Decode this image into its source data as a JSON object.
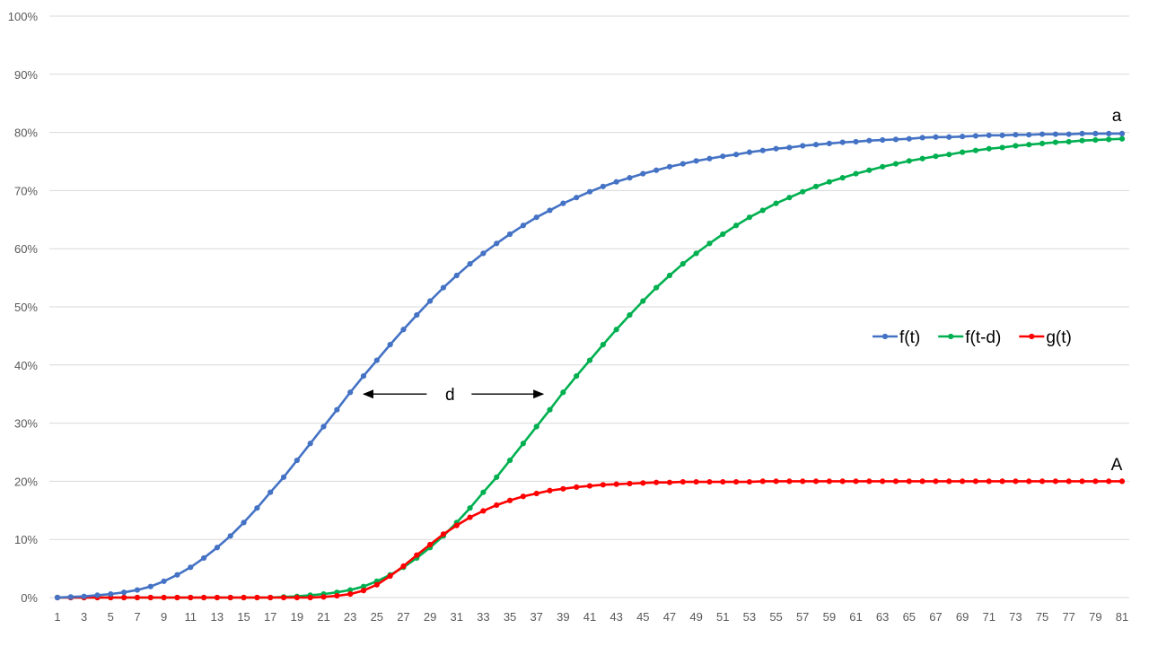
{
  "chart_data": {
    "type": "line",
    "x": [
      1,
      2,
      3,
      4,
      5,
      6,
      7,
      8,
      9,
      10,
      11,
      12,
      13,
      14,
      15,
      16,
      17,
      18,
      19,
      20,
      21,
      22,
      23,
      24,
      25,
      26,
      27,
      28,
      29,
      30,
      31,
      32,
      33,
      34,
      35,
      36,
      37,
      38,
      39,
      40,
      41,
      42,
      43,
      44,
      45,
      46,
      47,
      48,
      49,
      50,
      51,
      52,
      53,
      54,
      55,
      56,
      57,
      58,
      59,
      60,
      61,
      62,
      63,
      64,
      65,
      66,
      67,
      68,
      69,
      70,
      71,
      72,
      73,
      74,
      75,
      76,
      77,
      78,
      79,
      80,
      81
    ],
    "x_tick_labels": [
      "1",
      "3",
      "5",
      "7",
      "9",
      "11",
      "13",
      "15",
      "17",
      "19",
      "21",
      "23",
      "25",
      "27",
      "29",
      "31",
      "33",
      "35",
      "37",
      "39",
      "41",
      "43",
      "45",
      "47",
      "49",
      "51",
      "53",
      "55",
      "57",
      "59",
      "61",
      "63",
      "65",
      "67",
      "69",
      "71",
      "73",
      "75",
      "77",
      "79",
      "81"
    ],
    "y_tick_labels": [
      "0%",
      "10%",
      "20%",
      "30%",
      "40%",
      "50%",
      "60%",
      "70%",
      "80%",
      "90%",
      "100%"
    ],
    "ylim": [
      0,
      1
    ],
    "grid": "horizontal",
    "legend_position": "right-middle",
    "series": [
      {
        "name": "f(t)",
        "color": "#4472C4",
        "values": [
          0.0,
          0.001,
          0.002,
          0.004,
          0.006,
          0.009,
          0.013,
          0.019,
          0.028,
          0.039,
          0.052,
          0.068,
          0.086,
          0.106,
          0.129,
          0.154,
          0.181,
          0.207,
          0.236,
          0.265,
          0.294,
          0.323,
          0.353,
          0.381,
          0.408,
          0.435,
          0.461,
          0.486,
          0.51,
          0.533,
          0.554,
          0.574,
          0.592,
          0.609,
          0.625,
          0.64,
          0.654,
          0.666,
          0.678,
          0.688,
          0.698,
          0.707,
          0.715,
          0.722,
          0.729,
          0.735,
          0.741,
          0.746,
          0.751,
          0.755,
          0.759,
          0.762,
          0.766,
          0.769,
          0.772,
          0.774,
          0.777,
          0.779,
          0.781,
          0.783,
          0.784,
          0.786,
          0.787,
          0.788,
          0.789,
          0.791,
          0.792,
          0.792,
          0.793,
          0.794,
          0.795,
          0.795,
          0.796,
          0.796,
          0.797,
          0.797,
          0.797,
          0.798,
          0.798,
          0.798,
          0.798
        ]
      },
      {
        "name": "f(t-d)",
        "color": "#00B050",
        "values": [
          0,
          0,
          0,
          0,
          0,
          0,
          0,
          0,
          0,
          0,
          0,
          0,
          0,
          0,
          0,
          0,
          0,
          0.001,
          0.002,
          0.004,
          0.006,
          0.009,
          0.013,
          0.019,
          0.028,
          0.039,
          0.052,
          0.068,
          0.086,
          0.106,
          0.129,
          0.154,
          0.181,
          0.207,
          0.236,
          0.265,
          0.294,
          0.323,
          0.353,
          0.381,
          0.408,
          0.435,
          0.461,
          0.486,
          0.51,
          0.533,
          0.554,
          0.574,
          0.592,
          0.609,
          0.625,
          0.64,
          0.654,
          0.666,
          0.678,
          0.688,
          0.698,
          0.707,
          0.715,
          0.722,
          0.729,
          0.735,
          0.741,
          0.746,
          0.751,
          0.755,
          0.759,
          0.762,
          0.766,
          0.769,
          0.772,
          0.774,
          0.777,
          0.779,
          0.781,
          0.783,
          0.784,
          0.786,
          0.787,
          0.788,
          0.789
        ]
      },
      {
        "name": "g(t)",
        "color": "#FF0000",
        "values": [
          0,
          0,
          0,
          0,
          0,
          0,
          0,
          0,
          0,
          0,
          0,
          0,
          0,
          0,
          0,
          0,
          0,
          0,
          0,
          0,
          0.001,
          0.003,
          0.006,
          0.012,
          0.022,
          0.037,
          0.054,
          0.073,
          0.091,
          0.109,
          0.124,
          0.138,
          0.149,
          0.159,
          0.167,
          0.174,
          0.179,
          0.184,
          0.187,
          0.19,
          0.192,
          0.194,
          0.195,
          0.196,
          0.197,
          0.198,
          0.198,
          0.199,
          0.199,
          0.199,
          0.199,
          0.199,
          0.199,
          0.2,
          0.2,
          0.2,
          0.2,
          0.2,
          0.2,
          0.2,
          0.2,
          0.2,
          0.2,
          0.2,
          0.2,
          0.2,
          0.2,
          0.2,
          0.2,
          0.2,
          0.2,
          0.2,
          0.2,
          0.2,
          0.2,
          0.2,
          0.2,
          0.2,
          0.2,
          0.2,
          0.2
        ]
      }
    ],
    "annotations": [
      {
        "text": "a",
        "x": 81,
        "y": 0.83
      },
      {
        "text": "A",
        "x": 81,
        "y": 0.23
      },
      {
        "text": "d",
        "x": 30.5,
        "y": 0.35,
        "arrow_from": 24,
        "arrow_to": 37.5
      }
    ]
  }
}
